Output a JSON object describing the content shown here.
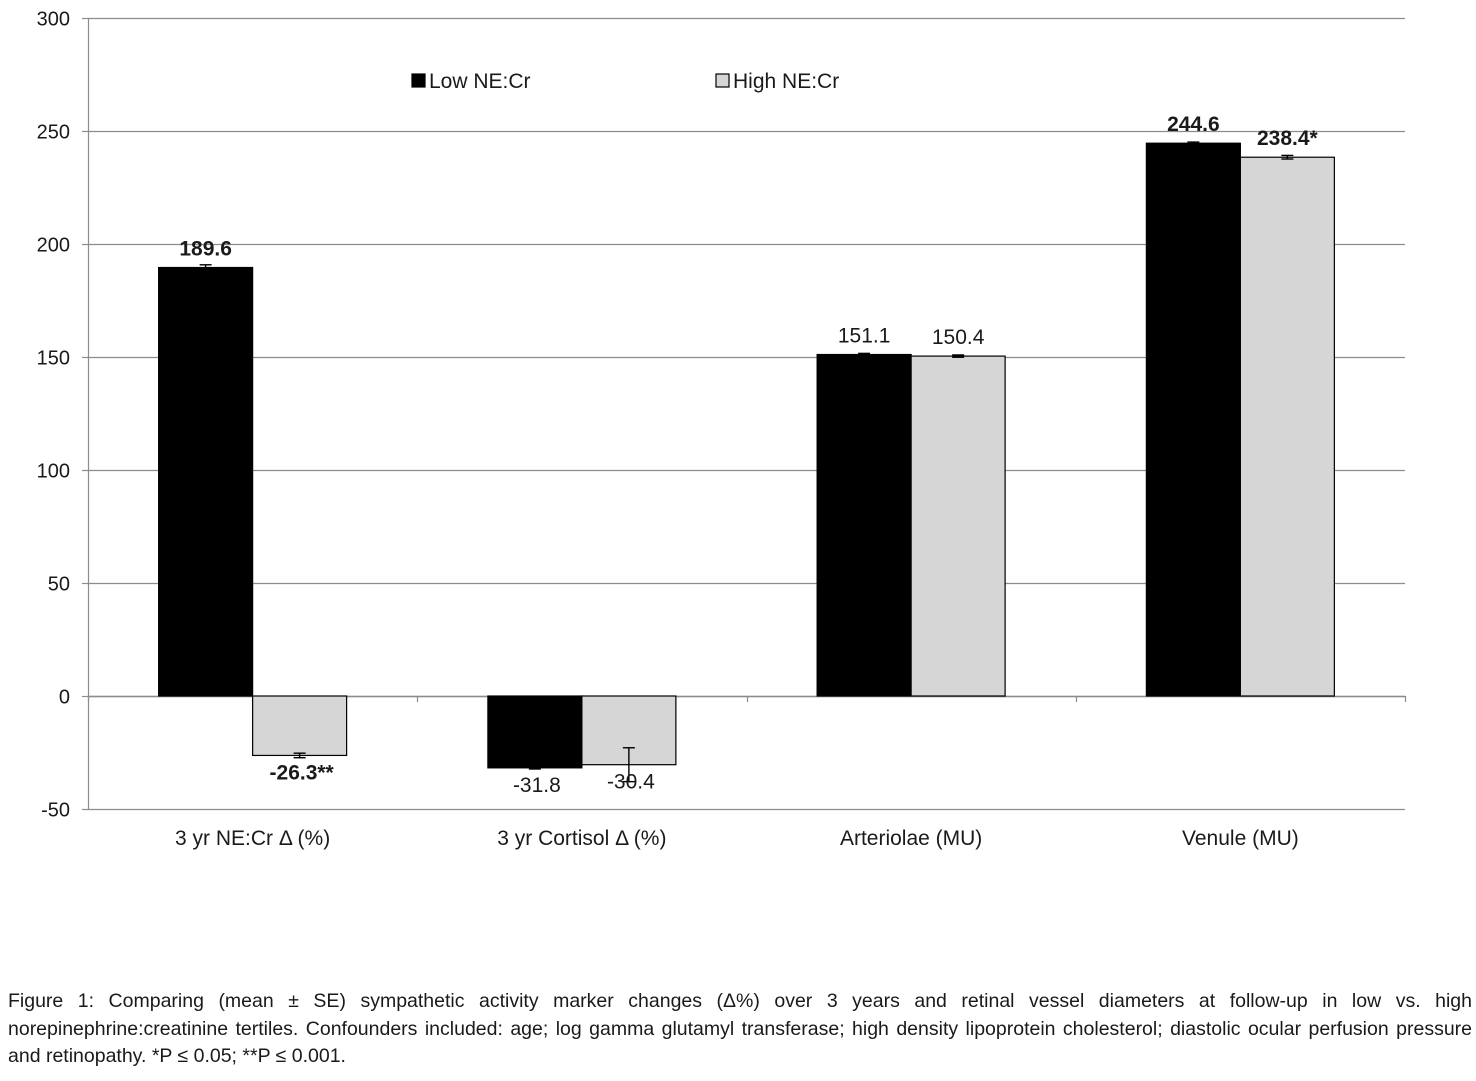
{
  "chart_data": {
    "type": "bar",
    "categories": [
      "3 yr NE:Cr Δ (%)",
      "3 yr Cortisol Δ (%)",
      "Arteriolae (MU)",
      "Venule (MU)"
    ],
    "series": [
      {
        "name": "Low NE:Cr",
        "color": "#000000",
        "values": [
          189.6,
          -31.8,
          151.1,
          244.6
        ],
        "errors": [
          1.2,
          0.5,
          0.5,
          0.5
        ],
        "labels": [
          "189.6",
          "-31.8",
          "151.1",
          "244.6"
        ],
        "label_bold": [
          true,
          false,
          false,
          true
        ]
      },
      {
        "name": "High NE:Cr",
        "color": "#d6d6d6",
        "values": [
          -26.3,
          -30.4,
          150.4,
          238.4
        ],
        "errors": [
          1.0,
          7.5,
          0.5,
          0.8
        ],
        "labels": [
          "-26.3**",
          "-30.4",
          "150.4",
          "238.4*"
        ],
        "label_bold": [
          true,
          false,
          false,
          true
        ]
      }
    ],
    "ylim": [
      -50,
      300
    ],
    "yticks": [
      -50,
      0,
      50,
      100,
      150,
      200,
      250,
      300
    ],
    "grid": true,
    "legend": "top-center",
    "xlabel": "",
    "ylabel": "",
    "title": ""
  },
  "caption": "Figure 1: Comparing (mean ± SE) sympathetic activity marker changes (Δ%) over 3 years and retinal vessel diameters at follow-up in low vs. high norepinephrine:creatinine tertiles. Confounders included: age; log gamma glutamyl transferase; high density lipoprotein cholesterol; diastolic ocular perfusion pressure and retinopathy. *P ≤ 0.05; **P ≤ 0.001."
}
